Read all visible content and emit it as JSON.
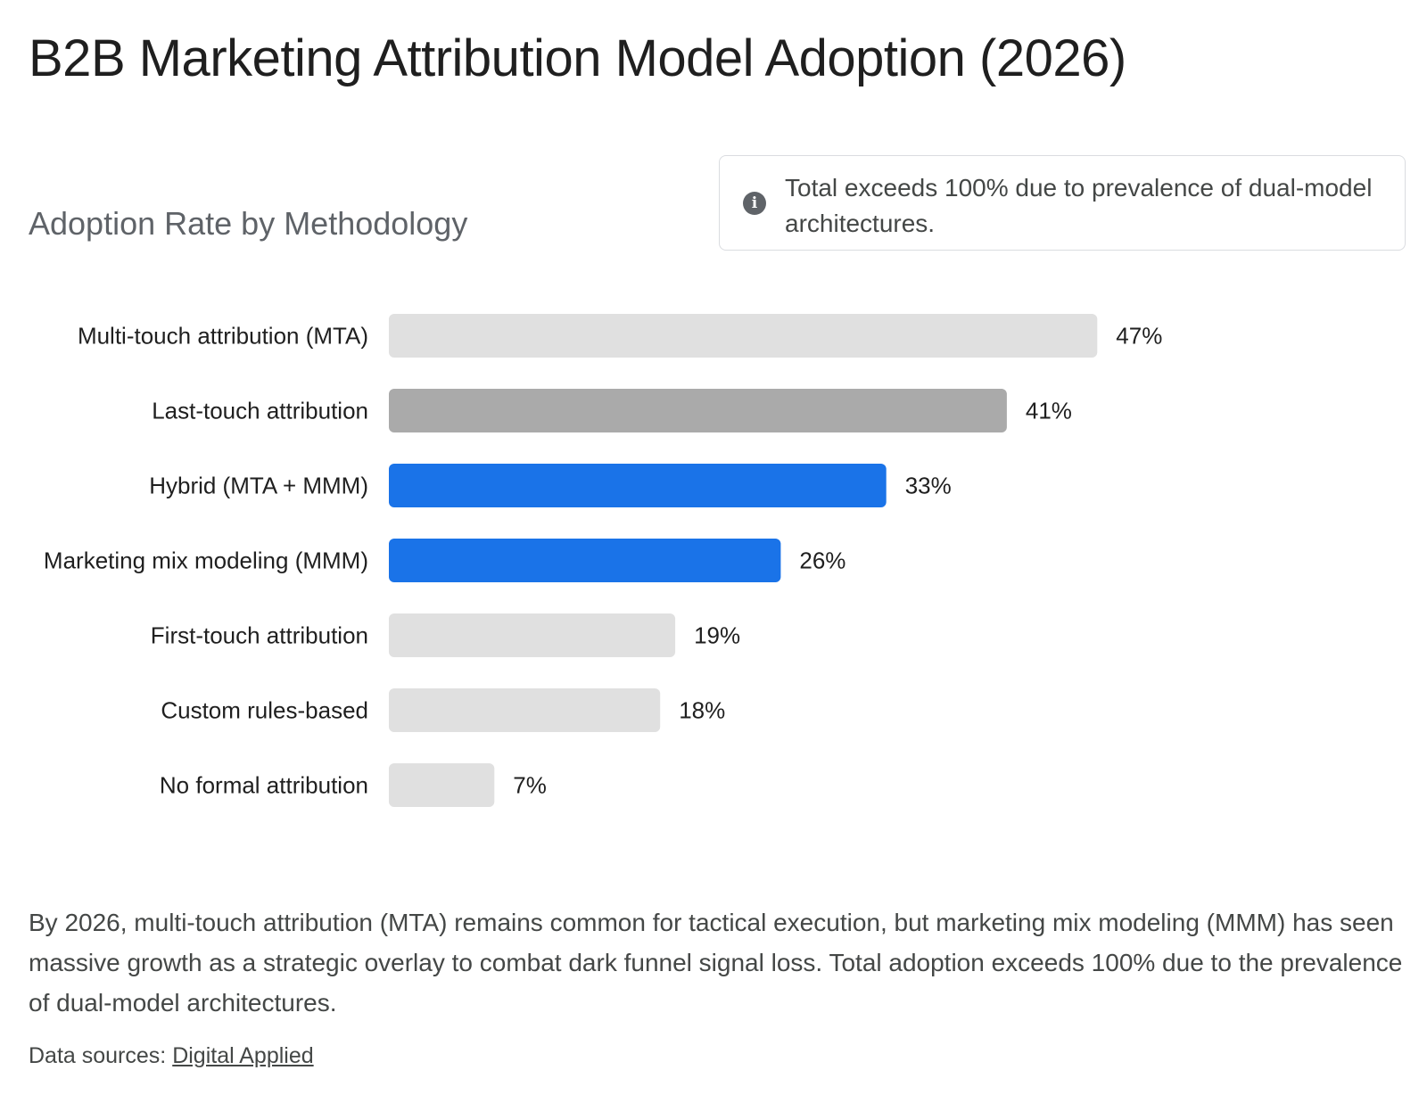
{
  "page": {
    "title": "B2B Marketing Attribution Model Adoption (2026)",
    "subtitle": "Adoption Rate by Methodology",
    "note_icon": "info-icon",
    "note_text": "Total exceeds 100% due to prevalence of dual-model architectures.",
    "description": "By 2026, multi-touch attribution (MTA) remains common for tactical execution, but marketing mix modeling (MMM) has seen massive growth as a strategic overlay to combat dark funnel signal loss. Total adoption exceeds 100% due to the prevalence of dual-model architectures.",
    "sources_label": "Data sources:",
    "sources_link": "Digital Applied"
  },
  "chart_data": {
    "type": "bar",
    "orientation": "horizontal",
    "title": "",
    "xlabel": "",
    "ylabel": "",
    "xlim": [
      0,
      50
    ],
    "grid": false,
    "legend": "none",
    "value_suffix": "%",
    "categories": [
      "Multi-touch attribution (MTA)",
      "Last-touch attribution",
      "Hybrid (MTA + MMM)",
      "Marketing mix modeling (MMM)",
      "First-touch attribution",
      "Custom rules-based",
      "No formal attribution"
    ],
    "values": [
      47,
      41,
      33,
      26,
      19,
      18,
      7
    ],
    "colors": [
      "#e0e0e0",
      "#aaaaaa",
      "#1a73e8",
      "#1a73e8",
      "#e0e0e0",
      "#e0e0e0",
      "#e0e0e0"
    ]
  }
}
